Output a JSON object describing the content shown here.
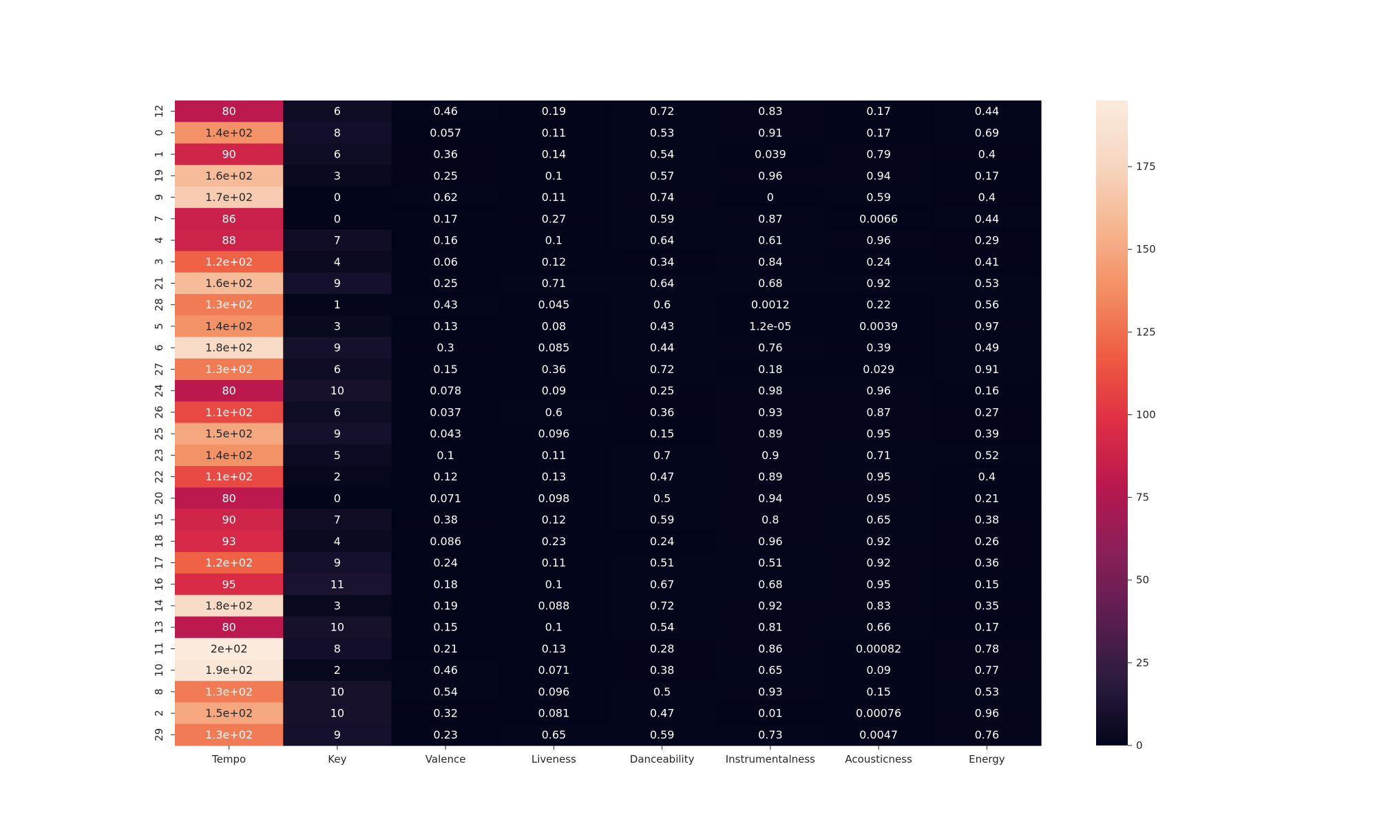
{
  "chart_data": {
    "type": "heatmap",
    "title": "",
    "xlabel": "",
    "ylabel": "",
    "columns": [
      "Tempo",
      "Key",
      "Valence",
      "Liveness",
      "Danceability",
      "Instrumentalness",
      "Acousticness",
      "Energy"
    ],
    "rows": [
      {
        "label": "12",
        "values": [
          80,
          6,
          0.46,
          0.19,
          0.72,
          0.83,
          0.17,
          0.44
        ],
        "labels": [
          "80",
          "6",
          "0.46",
          "0.19",
          "0.72",
          "0.83",
          "0.17",
          "0.44"
        ]
      },
      {
        "label": "0",
        "values": [
          140,
          8,
          0.057,
          0.11,
          0.53,
          0.91,
          0.17,
          0.69
        ],
        "labels": [
          "1.4e+02",
          "8",
          "0.057",
          "0.11",
          "0.53",
          "0.91",
          "0.17",
          "0.69"
        ]
      },
      {
        "label": "1",
        "values": [
          90,
          6,
          0.36,
          0.14,
          0.54,
          0.039,
          0.79,
          0.4
        ],
        "labels": [
          "90",
          "6",
          "0.36",
          "0.14",
          "0.54",
          "0.039",
          "0.79",
          "0.4"
        ]
      },
      {
        "label": "19",
        "values": [
          160,
          3,
          0.25,
          0.1,
          0.57,
          0.96,
          0.94,
          0.17
        ],
        "labels": [
          "1.6e+02",
          "3",
          "0.25",
          "0.1",
          "0.57",
          "0.96",
          "0.94",
          "0.17"
        ]
      },
      {
        "label": "9",
        "values": [
          170,
          0,
          0.62,
          0.11,
          0.74,
          0,
          0.59,
          0.4
        ],
        "labels": [
          "1.7e+02",
          "0",
          "0.62",
          "0.11",
          "0.74",
          "0",
          "0.59",
          "0.4"
        ]
      },
      {
        "label": "7",
        "values": [
          86,
          0,
          0.17,
          0.27,
          0.59,
          0.87,
          0.0066,
          0.44
        ],
        "labels": [
          "86",
          "0",
          "0.17",
          "0.27",
          "0.59",
          "0.87",
          "0.0066",
          "0.44"
        ]
      },
      {
        "label": "4",
        "values": [
          88,
          7,
          0.16,
          0.1,
          0.64,
          0.61,
          0.96,
          0.29
        ],
        "labels": [
          "88",
          "7",
          "0.16",
          "0.1",
          "0.64",
          "0.61",
          "0.96",
          "0.29"
        ]
      },
      {
        "label": "3",
        "values": [
          120,
          4,
          0.06,
          0.12,
          0.34,
          0.84,
          0.24,
          0.41
        ],
        "labels": [
          "1.2e+02",
          "4",
          "0.06",
          "0.12",
          "0.34",
          "0.84",
          "0.24",
          "0.41"
        ]
      },
      {
        "label": "21",
        "values": [
          160,
          9,
          0.25,
          0.71,
          0.64,
          0.68,
          0.92,
          0.53
        ],
        "labels": [
          "1.6e+02",
          "9",
          "0.25",
          "0.71",
          "0.64",
          "0.68",
          "0.92",
          "0.53"
        ]
      },
      {
        "label": "28",
        "values": [
          130,
          1,
          0.43,
          0.045,
          0.6,
          0.0012,
          0.22,
          0.56
        ],
        "labels": [
          "1.3e+02",
          "1",
          "0.43",
          "0.045",
          "0.6",
          "0.0012",
          "0.22",
          "0.56"
        ]
      },
      {
        "label": "5",
        "values": [
          140,
          3,
          0.13,
          0.08,
          0.43,
          1.2e-05,
          0.0039,
          0.97
        ],
        "labels": [
          "1.4e+02",
          "3",
          "0.13",
          "0.08",
          "0.43",
          "1.2e-05",
          "0.0039",
          "0.97"
        ]
      },
      {
        "label": "6",
        "values": [
          180,
          9,
          0.3,
          0.085,
          0.44,
          0.76,
          0.39,
          0.49
        ],
        "labels": [
          "1.8e+02",
          "9",
          "0.3",
          "0.085",
          "0.44",
          "0.76",
          "0.39",
          "0.49"
        ]
      },
      {
        "label": "27",
        "values": [
          130,
          6,
          0.15,
          0.36,
          0.72,
          0.18,
          0.029,
          0.91
        ],
        "labels": [
          "1.3e+02",
          "6",
          "0.15",
          "0.36",
          "0.72",
          "0.18",
          "0.029",
          "0.91"
        ]
      },
      {
        "label": "24",
        "values": [
          80,
          10,
          0.078,
          0.09,
          0.25,
          0.98,
          0.96,
          0.16
        ],
        "labels": [
          "80",
          "10",
          "0.078",
          "0.09",
          "0.25",
          "0.98",
          "0.96",
          "0.16"
        ]
      },
      {
        "label": "26",
        "values": [
          110,
          6,
          0.037,
          0.6,
          0.36,
          0.93,
          0.87,
          0.27
        ],
        "labels": [
          "1.1e+02",
          "6",
          "0.037",
          "0.6",
          "0.36",
          "0.93",
          "0.87",
          "0.27"
        ]
      },
      {
        "label": "25",
        "values": [
          150,
          9,
          0.043,
          0.096,
          0.15,
          0.89,
          0.95,
          0.39
        ],
        "labels": [
          "1.5e+02",
          "9",
          "0.043",
          "0.096",
          "0.15",
          "0.89",
          "0.95",
          "0.39"
        ]
      },
      {
        "label": "23",
        "values": [
          140,
          5,
          0.1,
          0.11,
          0.7,
          0.9,
          0.71,
          0.52
        ],
        "labels": [
          "1.4e+02",
          "5",
          "0.1",
          "0.11",
          "0.7",
          "0.9",
          "0.71",
          "0.52"
        ]
      },
      {
        "label": "22",
        "values": [
          110,
          2,
          0.12,
          0.13,
          0.47,
          0.89,
          0.95,
          0.4
        ],
        "labels": [
          "1.1e+02",
          "2",
          "0.12",
          "0.13",
          "0.47",
          "0.89",
          "0.95",
          "0.4"
        ]
      },
      {
        "label": "20",
        "values": [
          80,
          0,
          0.071,
          0.098,
          0.5,
          0.94,
          0.95,
          0.21
        ],
        "labels": [
          "80",
          "0",
          "0.071",
          "0.098",
          "0.5",
          "0.94",
          "0.95",
          "0.21"
        ]
      },
      {
        "label": "15",
        "values": [
          90,
          7,
          0.38,
          0.12,
          0.59,
          0.8,
          0.65,
          0.38
        ],
        "labels": [
          "90",
          "7",
          "0.38",
          "0.12",
          "0.59",
          "0.8",
          "0.65",
          "0.38"
        ]
      },
      {
        "label": "18",
        "values": [
          93,
          4,
          0.086,
          0.23,
          0.24,
          0.96,
          0.92,
          0.26
        ],
        "labels": [
          "93",
          "4",
          "0.086",
          "0.23",
          "0.24",
          "0.96",
          "0.92",
          "0.26"
        ]
      },
      {
        "label": "17",
        "values": [
          120,
          9,
          0.24,
          0.11,
          0.51,
          0.51,
          0.92,
          0.36
        ],
        "labels": [
          "1.2e+02",
          "9",
          "0.24",
          "0.11",
          "0.51",
          "0.51",
          "0.92",
          "0.36"
        ]
      },
      {
        "label": "16",
        "values": [
          95,
          11,
          0.18,
          0.1,
          0.67,
          0.68,
          0.95,
          0.15
        ],
        "labels": [
          "95",
          "11",
          "0.18",
          "0.1",
          "0.67",
          "0.68",
          "0.95",
          "0.15"
        ]
      },
      {
        "label": "14",
        "values": [
          180,
          3,
          0.19,
          0.088,
          0.72,
          0.92,
          0.83,
          0.35
        ],
        "labels": [
          "1.8e+02",
          "3",
          "0.19",
          "0.088",
          "0.72",
          "0.92",
          "0.83",
          "0.35"
        ]
      },
      {
        "label": "13",
        "values": [
          80,
          10,
          0.15,
          0.1,
          0.54,
          0.81,
          0.66,
          0.17
        ],
        "labels": [
          "80",
          "10",
          "0.15",
          "0.1",
          "0.54",
          "0.81",
          "0.66",
          "0.17"
        ]
      },
      {
        "label": "11",
        "values": [
          200,
          8,
          0.21,
          0.13,
          0.28,
          0.86,
          0.00082,
          0.78
        ],
        "labels": [
          "2e+02",
          "8",
          "0.21",
          "0.13",
          "0.28",
          "0.86",
          "0.00082",
          "0.78"
        ]
      },
      {
        "label": "10",
        "values": [
          190,
          2,
          0.46,
          0.071,
          0.38,
          0.65,
          0.09,
          0.77
        ],
        "labels": [
          "1.9e+02",
          "2",
          "0.46",
          "0.071",
          "0.38",
          "0.65",
          "0.09",
          "0.77"
        ]
      },
      {
        "label": "8",
        "values": [
          130,
          10,
          0.54,
          0.096,
          0.5,
          0.93,
          0.15,
          0.53
        ],
        "labels": [
          "1.3e+02",
          "10",
          "0.54",
          "0.096",
          "0.5",
          "0.93",
          "0.15",
          "0.53"
        ]
      },
      {
        "label": "2",
        "values": [
          150,
          10,
          0.32,
          0.081,
          0.47,
          0.01,
          0.00076,
          0.96
        ],
        "labels": [
          "1.5e+02",
          "10",
          "0.32",
          "0.081",
          "0.47",
          "0.01",
          "0.00076",
          "0.96"
        ]
      },
      {
        "label": "29",
        "values": [
          130,
          9,
          0.23,
          0.65,
          0.59,
          0.73,
          0.0047,
          0.76
        ],
        "labels": [
          "1.3e+02",
          "9",
          "0.23",
          "0.65",
          "0.59",
          "0.73",
          "0.0047",
          "0.76"
        ]
      }
    ],
    "colorbar": {
      "vmin": 0,
      "vmax": 195,
      "ticks": [
        0,
        25,
        50,
        75,
        100,
        125,
        150,
        175
      ],
      "colormap": "rocket",
      "stops": [
        "#03051a",
        "#2b1c3e",
        "#5c1e50",
        "#8a1f58",
        "#b8174f",
        "#de2e44",
        "#ee5a42",
        "#f38b5f",
        "#f6b48e",
        "#f7d6c0",
        "#faebdd"
      ]
    },
    "grid": false,
    "legend": "colorbar-right"
  }
}
